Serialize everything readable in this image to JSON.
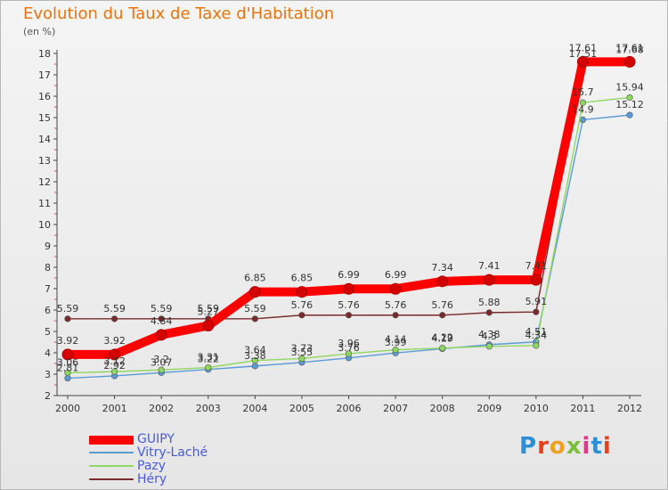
{
  "title": "Evolution du Taux de Taxe d'Habitation",
  "subtitle": "(en %)",
  "logo": "Proxiti",
  "chart_data": {
    "type": "line",
    "title": "Evolution du Taux de Taxe d'Habitation",
    "ylabel": "(en %)",
    "xlabel": "",
    "x": [
      2000,
      2001,
      2002,
      2003,
      2004,
      2005,
      2006,
      2007,
      2008,
      2009,
      2010,
      2011,
      2012
    ],
    "ylim": [
      2,
      18
    ],
    "yticks": [
      2,
      3,
      4,
      5,
      6,
      7,
      8,
      9,
      10,
      11,
      12,
      13,
      14,
      15,
      16,
      17,
      18
    ],
    "grid": false,
    "legend_position": "bottom-left",
    "series": [
      {
        "name": "GUIPY",
        "color": "#ff0000",
        "values": [
          3.92,
          3.92,
          4.84,
          5.27,
          6.85,
          6.85,
          6.99,
          6.99,
          7.34,
          7.41,
          7.41,
          17.61,
          17.61
        ],
        "labels": [
          "3.92",
          "3.92",
          "4.84",
          "5.27",
          "6.85",
          "6.85",
          "6.99",
          "6.99",
          "7.34",
          "7.41",
          "7.41",
          "17.61",
          "17.61"
        ]
      },
      {
        "name": "Vitry-Laché",
        "color": "#5b9bd5",
        "values": [
          2.81,
          2.92,
          3.07,
          3.22,
          3.38,
          3.55,
          3.76,
          3.99,
          4.19,
          4.38,
          4.51,
          14.9,
          15.12
        ],
        "labels": [
          "2.81",
          "2.92",
          "3.07",
          "3.22",
          "3.38",
          "3.55",
          "3.76",
          "3.99",
          "4.19",
          "4.38",
          "4.51",
          "14.9",
          "15.12"
        ]
      },
      {
        "name": "Pazy",
        "color": "#8fd860",
        "values": [
          3.06,
          3.12,
          3.2,
          3.31,
          3.64,
          3.73,
          3.96,
          4.14,
          4.22,
          4.3,
          4.34,
          15.7,
          15.94
        ],
        "labels": [
          "3.06",
          "3.12",
          "3.2",
          "3.31",
          "3.64",
          "3.73",
          "3.96",
          "4.14",
          "4.22",
          "4.3",
          "4.34",
          "15.7",
          "15.94"
        ]
      },
      {
        "name": "Héry",
        "color": "#7a2a2a",
        "values": [
          5.59,
          5.59,
          5.59,
          5.59,
          5.59,
          5.76,
          5.76,
          5.76,
          5.76,
          5.88,
          5.91,
          17.51,
          17.68
        ],
        "labels": [
          "5.59",
          "5.59",
          "5.59",
          "5.59",
          "5.59",
          "5.76",
          "5.76",
          "5.76",
          "5.76",
          "5.88",
          "5.91",
          "17.51",
          "17.68"
        ]
      }
    ]
  }
}
